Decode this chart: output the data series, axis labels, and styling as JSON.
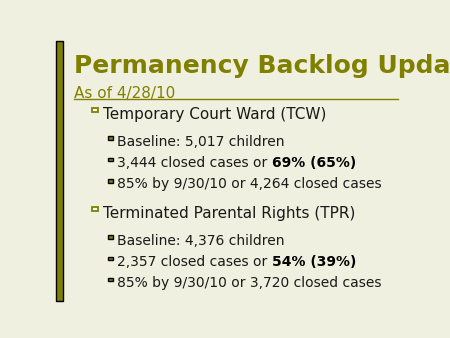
{
  "title": "Permanency Backlog Update",
  "subtitle": "As of 4/28/10",
  "title_color": "#808000",
  "subtitle_color": "#808000",
  "separator_color": "#808000",
  "slide_bg": "#f0f0e0",
  "left_bar_color": "#808000",
  "bullet_color": "#808000",
  "text_color": "#1a1a1a",
  "bold_color": "#000000",
  "section1_header": "Temporary Court Ward (TCW)",
  "section1_bullets": [
    {
      "text": "Baseline: 5,017 children",
      "bold_part": null
    },
    {
      "text": "3,444 closed cases or ",
      "bold_part": "69% (65%)"
    },
    {
      "text": "85% by 9/30/10 or 4,264 closed cases",
      "bold_part": null
    }
  ],
  "section2_header": "Terminated Parental Rights (TPR)",
  "section2_bullets": [
    {
      "text": "Baseline: 4,376 children",
      "bold_part": null
    },
    {
      "text": "2,357 closed cases or ",
      "bold_part": "54% (39%)"
    },
    {
      "text": "85% by 9/30/10 or 3,720 closed cases",
      "bold_part": null
    }
  ],
  "left_bar_width": 0.018,
  "title_fontsize": 18,
  "subtitle_fontsize": 11,
  "header_fontsize": 11,
  "bullet_fontsize": 10
}
